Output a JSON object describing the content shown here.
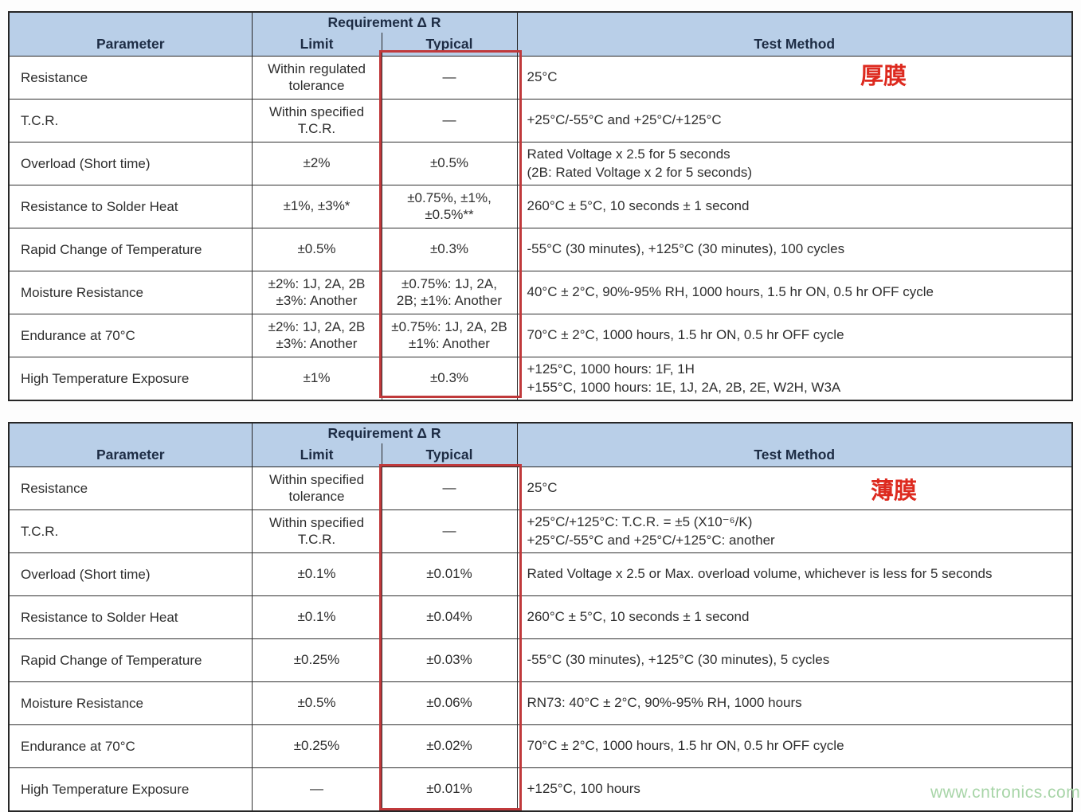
{
  "header": {
    "parameter": "Parameter",
    "requirement": "Requirement Δ R",
    "limit": "Limit",
    "typical": "Typical",
    "test_method": "Test Method"
  },
  "colors": {
    "header_bg": "#b9cfe8",
    "header_text": "#1d2c44",
    "highlight_border": "#c0393b",
    "annotation_red": "#dd2a1f",
    "watermark_green": "#a8d5a8"
  },
  "watermark": "www.cntronics.com",
  "tables": [
    {
      "name": "thick-film",
      "annotation": "厚膜",
      "rows": [
        {
          "parameter": "Resistance",
          "limit": "Within regulated\ntolerance",
          "typical": "—",
          "test_method": "25°C"
        },
        {
          "parameter": "T.C.R.",
          "limit": "Within specified\nT.C.R.",
          "typical": "—",
          "test_method": "+25°C/-55°C and +25°C/+125°C"
        },
        {
          "parameter": "Overload (Short time)",
          "limit": "±2%",
          "typical": "±0.5%",
          "test_method": "Rated Voltage x 2.5 for 5 seconds\n(2B: Rated Voltage x 2 for 5 seconds)"
        },
        {
          "parameter": "Resistance to Solder Heat",
          "limit": "±1%, ±3%*",
          "typical": "±0.75%, ±1%,\n±0.5%**",
          "test_method": "260°C ± 5°C, 10 seconds ± 1 second"
        },
        {
          "parameter": "Rapid Change of Temperature",
          "limit": "±0.5%",
          "typical": "±0.3%",
          "test_method": "-55°C (30 minutes), +125°C (30 minutes), 100 cycles"
        },
        {
          "parameter": "Moisture Resistance",
          "limit": "±2%: 1J, 2A, 2B\n±3%: Another",
          "typical": "±0.75%: 1J, 2A,\n2B; ±1%: Another",
          "test_method": "40°C ± 2°C, 90%-95% RH, 1000 hours, 1.5 hr ON, 0.5 hr OFF cycle"
        },
        {
          "parameter": "Endurance at 70°C",
          "limit": "±2%: 1J, 2A, 2B\n±3%: Another",
          "typical": "±0.75%: 1J, 2A, 2B\n±1%: Another",
          "test_method": "70°C ± 2°C, 1000 hours, 1.5 hr ON, 0.5 hr OFF cycle"
        },
        {
          "parameter": "High Temperature Exposure",
          "limit": "±1%",
          "typical": "±0.3%",
          "test_method": "+125°C, 1000 hours: 1F, 1H\n+155°C, 1000 hours: 1E, 1J, 2A, 2B, 2E, W2H, W3A"
        }
      ]
    },
    {
      "name": "thin-film",
      "annotation": "薄膜",
      "rows": [
        {
          "parameter": "Resistance",
          "limit": "Within specified\ntolerance",
          "typical": "—",
          "test_method": "25°C"
        },
        {
          "parameter": "T.C.R.",
          "limit": "Within specified\nT.C.R.",
          "typical": "—",
          "test_method": "+25°C/+125°C: T.C.R. = ±5 (X10⁻⁶/K)\n+25°C/-55°C and +25°C/+125°C: another"
        },
        {
          "parameter": "Overload (Short time)",
          "limit": "±0.1%",
          "typical": "±0.01%",
          "test_method": "Rated Voltage x 2.5 or Max. overload volume, whichever is less for 5 seconds"
        },
        {
          "parameter": "Resistance to Solder Heat",
          "limit": "±0.1%",
          "typical": "±0.04%",
          "test_method": "260°C ± 5°C, 10 seconds ± 1 second"
        },
        {
          "parameter": "Rapid Change of Temperature",
          "limit": "±0.25%",
          "typical": "±0.03%",
          "test_method": "-55°C (30 minutes), +125°C (30 minutes), 5 cycles"
        },
        {
          "parameter": "Moisture Resistance",
          "limit": "±0.5%",
          "typical": "±0.06%",
          "test_method": "RN73: 40°C ± 2°C, 90%-95% RH, 1000 hours"
        },
        {
          "parameter": "Endurance at 70°C",
          "limit": "±0.25%",
          "typical": "±0.02%",
          "test_method": "70°C ± 2°C, 1000 hours, 1.5 hr ON, 0.5 hr OFF cycle"
        },
        {
          "parameter": "High Temperature Exposure",
          "limit": "—",
          "typical": "±0.01%",
          "test_method": "+125°C, 100 hours"
        }
      ]
    }
  ]
}
